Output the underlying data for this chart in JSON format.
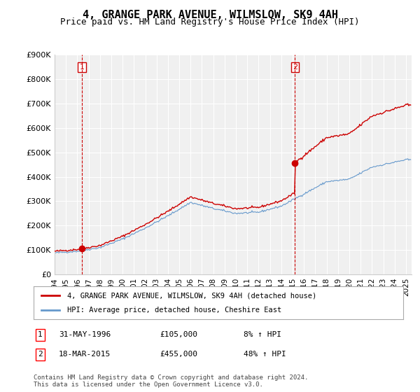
{
  "title": "4, GRANGE PARK AVENUE, WILMSLOW, SK9 4AH",
  "subtitle": "Price paid vs. HM Land Registry's House Price Index (HPI)",
  "ylabel": "",
  "xlabel": "",
  "ylim": [
    0,
    900000
  ],
  "yticks": [
    0,
    100000,
    200000,
    300000,
    400000,
    500000,
    600000,
    700000,
    800000,
    900000
  ],
  "ytick_labels": [
    "£0",
    "£100K",
    "£200K",
    "£300K",
    "£400K",
    "£500K",
    "£600K",
    "£700K",
    "£800K",
    "£900K"
  ],
  "xlim_start": 1994.0,
  "xlim_end": 2025.5,
  "xtick_years": [
    1994,
    1995,
    1996,
    1997,
    1998,
    1999,
    2000,
    2001,
    2002,
    2003,
    2004,
    2005,
    2006,
    2007,
    2008,
    2009,
    2010,
    2011,
    2012,
    2013,
    2014,
    2015,
    2016,
    2017,
    2018,
    2019,
    2020,
    2021,
    2022,
    2023,
    2024,
    2025
  ],
  "sale1_x": 1996.41,
  "sale1_y": 105000,
  "sale1_label": "1",
  "sale1_date": "31-MAY-1996",
  "sale1_price": "£105,000",
  "sale1_hpi": "8% ↑ HPI",
  "sale2_x": 2015.21,
  "sale2_y": 455000,
  "sale2_label": "2",
  "sale2_date": "18-MAR-2015",
  "sale2_price": "£455,000",
  "sale2_hpi": "48% ↑ HPI",
  "line_color_red": "#cc0000",
  "line_color_blue": "#6699cc",
  "marker_color_red": "#cc0000",
  "vline_color": "#cc0000",
  "legend_label_red": "4, GRANGE PARK AVENUE, WILMSLOW, SK9 4AH (detached house)",
  "legend_label_blue": "HPI: Average price, detached house, Cheshire East",
  "footnote": "Contains HM Land Registry data © Crown copyright and database right 2024.\nThis data is licensed under the Open Government Licence v3.0.",
  "bg_color": "#ffffff",
  "plot_bg_color": "#f0f0f0",
  "grid_color": "#ffffff",
  "title_fontsize": 11,
  "subtitle_fontsize": 9
}
